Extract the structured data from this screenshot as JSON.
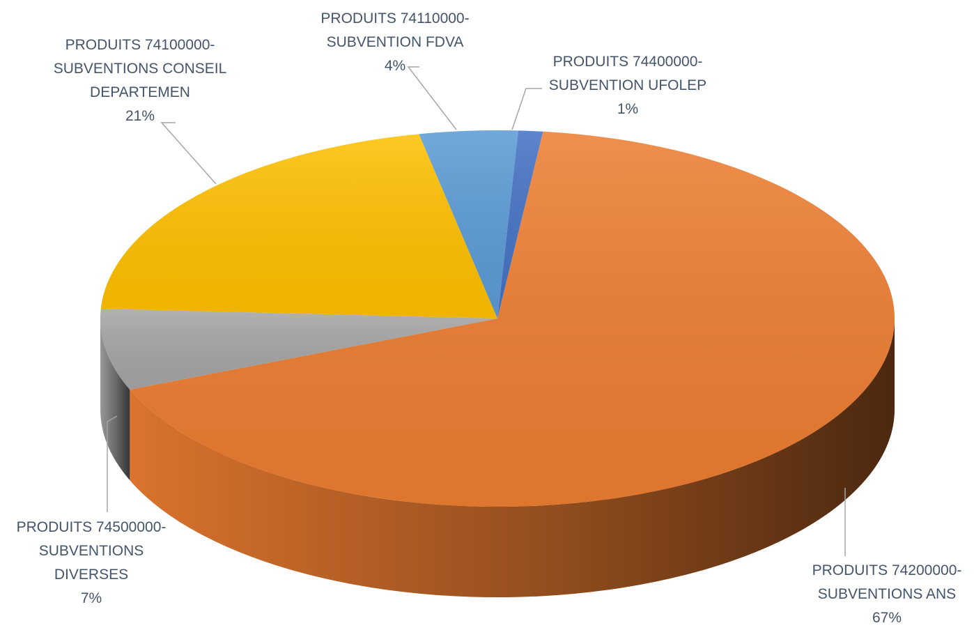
{
  "chart_data": {
    "type": "pie",
    "title": "",
    "legend": "none",
    "slices": [
      {
        "name": "PRODUITS 74400000-SUBVENTION UFOLEP",
        "lines": [
          "PRODUITS 74400000-",
          "SUBVENTION UFOLEP",
          "1%"
        ],
        "value": 1,
        "color": "#4472c4"
      },
      {
        "name": "PRODUITS 74200000-SUBVENTIONS ANS",
        "lines": [
          "PRODUITS 74200000-",
          "SUBVENTIONS ANS",
          "67%"
        ],
        "value": 67,
        "color": "#ed7d31"
      },
      {
        "name": "PRODUITS 74500000-SUBVENTIONS DIVERSES",
        "lines": [
          "PRODUITS 74500000-",
          "SUBVENTIONS",
          "DIVERSES",
          "7%"
        ],
        "value": 7,
        "color": "#a5a5a5"
      },
      {
        "name": "PRODUITS 74100000-SUBVENTIONS CONSEIL DEPARTEMEN",
        "lines": [
          "PRODUITS 74100000-",
          "SUBVENTIONS CONSEIL",
          "DEPARTEMEN",
          "21%"
        ],
        "value": 21,
        "color": "#ffc000"
      },
      {
        "name": "PRODUITS 74110000-SUBVENTION FDVA",
        "lines": [
          "PRODUITS 74110000-",
          "SUBVENTION FDVA",
          "4%"
        ],
        "value": 4,
        "color": "#5b9bd5"
      }
    ]
  }
}
